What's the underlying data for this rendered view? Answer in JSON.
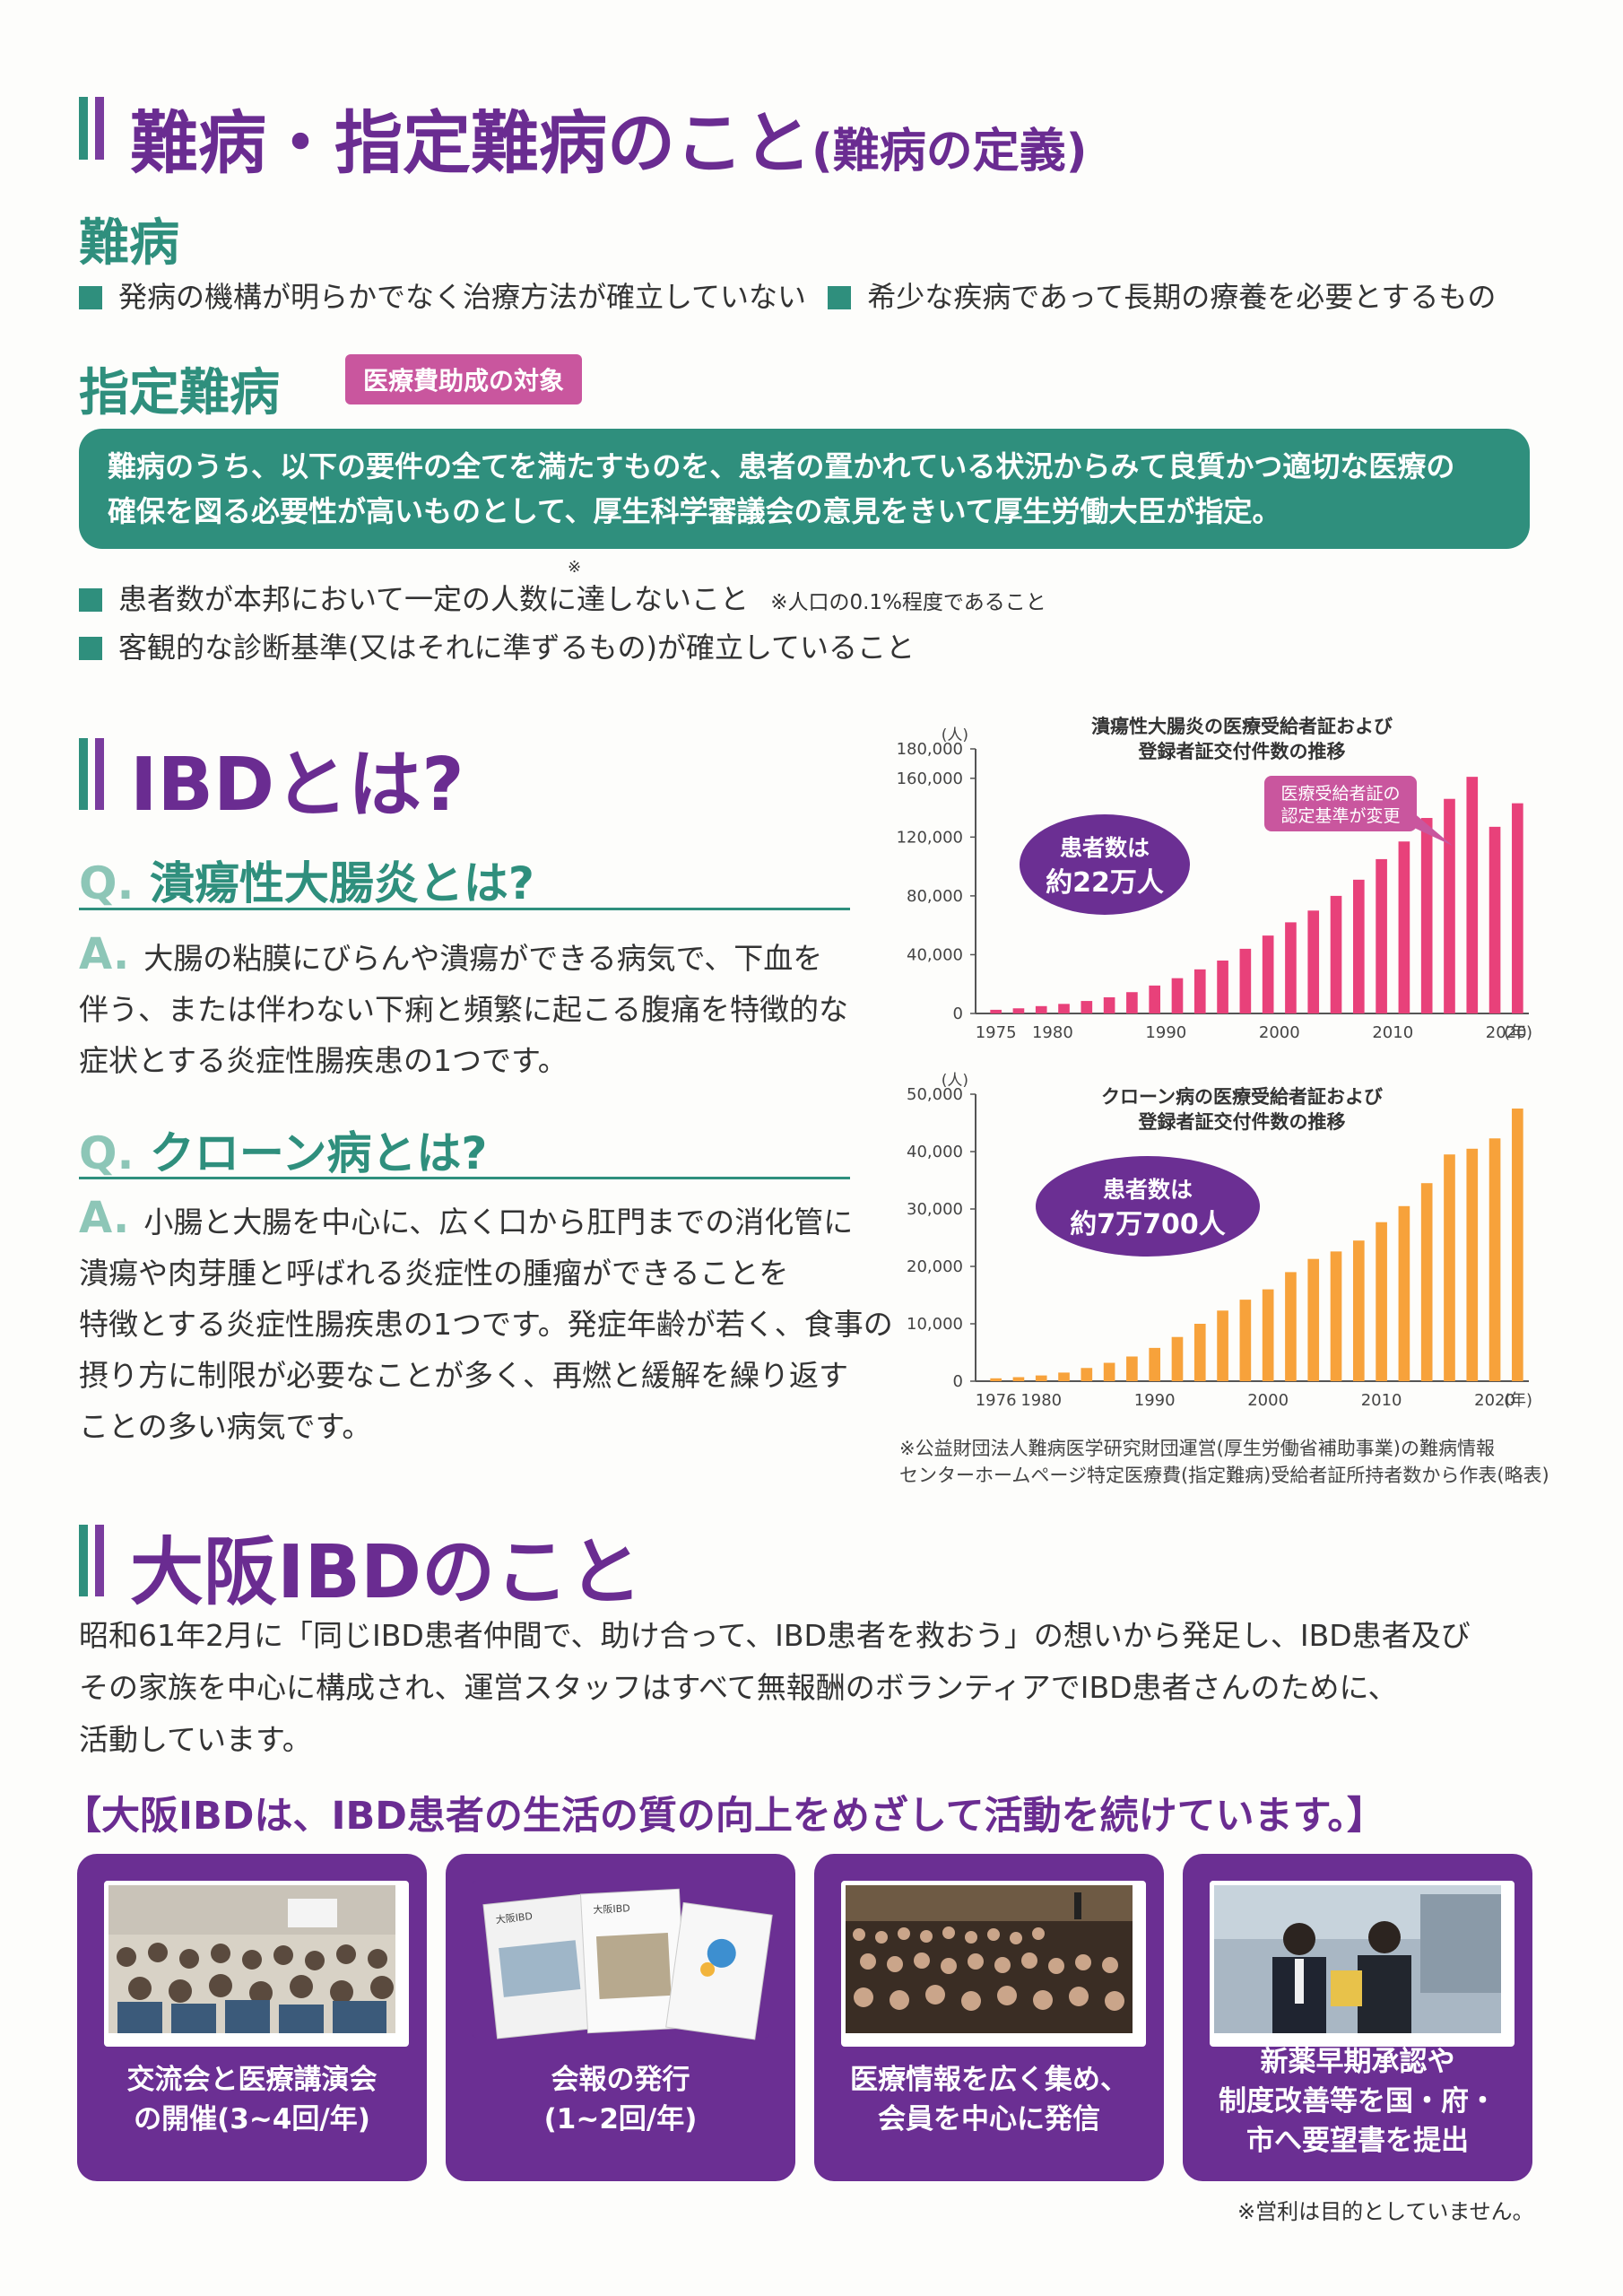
{
  "section1": {
    "title": "難病・指定難病のこと",
    "title_paren": "(難病の定義)",
    "nanbyo_heading": "難病",
    "nanbyo_bullets": [
      "発病の機構が明らかでなく治療方法が確立していない",
      "希少な疾病であって長期の療養を必要とするもの"
    ],
    "shitei_heading": "指定難病",
    "shitei_badge": "医療費助成の対象",
    "shitei_box": [
      "難病のうち、以下の要件の全てを満たすものを、患者の置かれている状況からみて良質かつ適切な医療の",
      "確保を図る必要性が高いものとして、厚生科学審議会の意見をきいて厚生労働大臣が指定。"
    ],
    "req1": "患者数が本邦において一定の人数に達しないこと",
    "req1_mark": "※",
    "req1_note": "※人口の0.1%程度であること",
    "req2": "客観的な診断基準(又はそれに準ずるもの)が確立していること"
  },
  "section2": {
    "title": "IBDとは?",
    "q1_label": "Q.",
    "q1": "潰瘍性大腸炎とは?",
    "a_label": "A.",
    "a1": [
      "大腸の粘膜にびらんや潰瘍ができる病気で、下血を",
      "伴う、または伴わない下痢と頻繁に起こる腹痛を特徴的な",
      "症状とする炎症性腸疾患の1つです。"
    ],
    "q2_label": "Q.",
    "q2": "クローン病とは?",
    "a2": [
      "小腸と大腸を中心に、広く口から肛門までの消化管に",
      "潰瘍や肉芽腫と呼ばれる炎症性の腫瘤ができることを",
      "特徴とする炎症性腸疾患の1つです。発症年齢が若く、食事の",
      "摂り方に制限が必要なことが多く、再燃と緩解を繰り返す",
      "ことの多い病気です。"
    ]
  },
  "chart_data": [
    {
      "type": "bar",
      "title": "潰瘍性大腸炎の医療受給者証および登録者証交付件数の推移",
      "title_lines": [
        "潰瘍性大腸炎の医療受給者証および",
        "登録者証交付件数の推移"
      ],
      "y_unit": "(人)",
      "x_unit": "(年)",
      "ylim": [
        0,
        180000
      ],
      "y_ticks": [
        0,
        40000,
        80000,
        120000,
        160000,
        180000
      ],
      "y_tick_labels": [
        "0",
        "40,000",
        "80,000",
        "120,000",
        "160,000",
        "180,000"
      ],
      "x_tick_labels": [
        "1975",
        "1980",
        "1990",
        "2000",
        "2010",
        "2020"
      ],
      "color": "#e8417a",
      "categories": [
        "1975",
        "1977",
        "1979",
        "1981",
        "1983",
        "1985",
        "1987",
        "1989",
        "1991",
        "1993",
        "1995",
        "1997",
        "1999",
        "2001",
        "2003",
        "2005",
        "2007",
        "2009",
        "2011",
        "2013",
        "2015",
        "2017",
        "2019",
        "2021"
      ],
      "values": [
        2500,
        3500,
        5000,
        6500,
        8500,
        11000,
        14500,
        19000,
        24000,
        30000,
        36000,
        44000,
        53000,
        62000,
        70000,
        80000,
        91000,
        105000,
        117000,
        133000,
        146000,
        161000,
        127000,
        143000
      ],
      "badge_lines": [
        "患者数は",
        "約22万人"
      ],
      "callout_lines": [
        "医療受給者証の",
        "認定基準が変更"
      ]
    },
    {
      "type": "bar",
      "title": "クローン病の医療受給者証および登録者証交付件数の推移",
      "title_lines": [
        "クローン病の医療受給者証および",
        "登録者証交付件数の推移"
      ],
      "y_unit": "(人)",
      "x_unit": "(年)",
      "ylim": [
        0,
        50000
      ],
      "y_ticks": [
        0,
        10000,
        20000,
        30000,
        40000,
        50000
      ],
      "y_tick_labels": [
        "0",
        "10,000",
        "20,000",
        "30,000",
        "40,000",
        "50,000"
      ],
      "x_tick_labels": [
        "1976",
        "1980",
        "1990",
        "2000",
        "2010",
        "2020"
      ],
      "color": "#f7a23b",
      "categories": [
        "1976",
        "1978",
        "1980",
        "1982",
        "1984",
        "1986",
        "1988",
        "1990",
        "1992",
        "1994",
        "1996",
        "1998",
        "2000",
        "2002",
        "2004",
        "2006",
        "2008",
        "2010",
        "2012",
        "2014",
        "2016",
        "2018",
        "2020",
        "2022"
      ],
      "values": [
        500,
        700,
        1000,
        1500,
        2300,
        3200,
        4300,
        5800,
        7700,
        10000,
        12300,
        14200,
        16000,
        19000,
        21300,
        22600,
        24500,
        27700,
        30500,
        34500,
        39500,
        40500,
        42300,
        47500
      ],
      "badge_lines": [
        "患者数は",
        "約7万700人"
      ]
    }
  ],
  "chart_source": [
    "※公益財団法人難病医学研究財団運営(厚生労働省補助事業)の難病情報",
    "センターホームページ特定医療費(指定難病)受給者証所持者数から作表(略表)"
  ],
  "section3": {
    "title": "大阪IBDのこと",
    "intro": [
      "昭和61年2月に「同じIBD患者仲間で、助け合って、IBD患者を救おう」の想いから発足し、IBD患者及び",
      "その家族を中心に構成され、運営スタッフはすべて無報酬のボランティアでIBD患者さんのために、",
      "活動しています。"
    ],
    "slogan": "【大阪IBDは、IBD患者の生活の質の向上をめざして活動を続けています。】",
    "cards": [
      {
        "caption": [
          "交流会と医療講演会",
          "の開催(3~4回/年)"
        ]
      },
      {
        "caption": [
          "会報の発行",
          "(1~2回/年)"
        ],
        "book_labels": [
          "大阪IBD",
          "大阪IBD"
        ]
      },
      {
        "caption": [
          "医療情報を広く集め、",
          "会員を中心に発信"
        ]
      },
      {
        "caption": [
          "新薬早期承認や",
          "制度改善等を国・府・",
          "市へ要望書を提出"
        ]
      }
    ],
    "footnote": "※営利は目的としていません。"
  }
}
